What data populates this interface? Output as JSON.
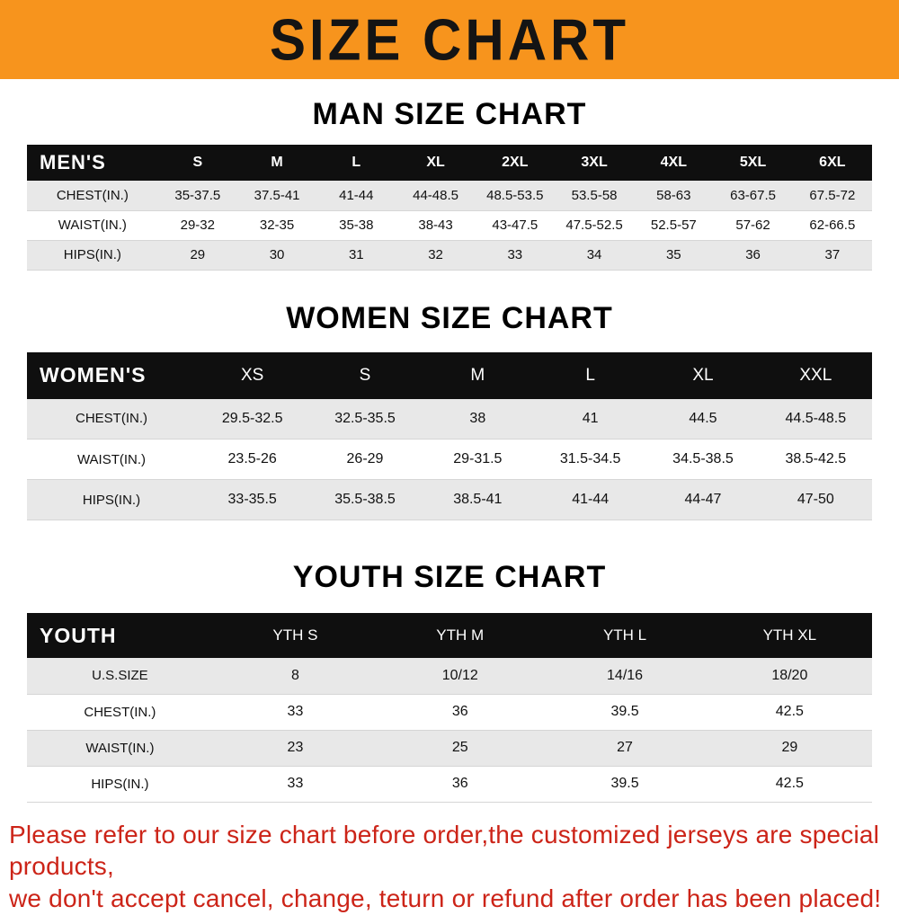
{
  "banner": {
    "title": "SIZE CHART"
  },
  "colors": {
    "banner_bg": "#F7941D",
    "header_bg": "#0F0F0F",
    "row_alt_bg": "#E8E8E8",
    "footer_red": "#CC2418"
  },
  "chart_data": [
    {
      "type": "table",
      "title": "MAN SIZE CHART",
      "corner_label": "MEN'S",
      "columns": [
        "S",
        "M",
        "L",
        "XL",
        "2XL",
        "3XL",
        "4XL",
        "5XL",
        "6XL"
      ],
      "rows": [
        {
          "label": "CHEST(IN.)",
          "values": [
            "35-37.5",
            "37.5-41",
            "41-44",
            "44-48.5",
            "48.5-53.5",
            "53.5-58",
            "58-63",
            "63-67.5",
            "67.5-72"
          ]
        },
        {
          "label": "WAIST(IN.)",
          "values": [
            "29-32",
            "32-35",
            "35-38",
            "38-43",
            "43-47.5",
            "47.5-52.5",
            "52.5-57",
            "57-62",
            "62-66.5"
          ]
        },
        {
          "label": "HIPS(IN.)",
          "values": [
            "29",
            "30",
            "31",
            "32",
            "33",
            "34",
            "35",
            "36",
            "37"
          ]
        }
      ]
    },
    {
      "type": "table",
      "title": "WOMEN SIZE CHART",
      "corner_label": "WOMEN'S",
      "columns": [
        "XS",
        "S",
        "M",
        "L",
        "XL",
        "XXL"
      ],
      "rows": [
        {
          "label": "CHEST(IN.)",
          "values": [
            "29.5-32.5",
            "32.5-35.5",
            "38",
            "41",
            "44.5",
            "44.5-48.5"
          ]
        },
        {
          "label": "WAIST(IN.)",
          "values": [
            "23.5-26",
            "26-29",
            "29-31.5",
            "31.5-34.5",
            "34.5-38.5",
            "38.5-42.5"
          ]
        },
        {
          "label": "HIPS(IN.)",
          "values": [
            "33-35.5",
            "35.5-38.5",
            "38.5-41",
            "41-44",
            "44-47",
            "47-50"
          ]
        }
      ]
    },
    {
      "type": "table",
      "title": "YOUTH SIZE CHART",
      "corner_label": "YOUTH",
      "columns": [
        "YTH S",
        "YTH M",
        "YTH L",
        "YTH XL"
      ],
      "rows": [
        {
          "label": "U.S.SIZE",
          "values": [
            "8",
            "10/12",
            "14/16",
            "18/20"
          ]
        },
        {
          "label": "CHEST(IN.)",
          "values": [
            "33",
            "36",
            "39.5",
            "42.5"
          ]
        },
        {
          "label": "WAIST(IN.)",
          "values": [
            "23",
            "25",
            "27",
            "29"
          ]
        },
        {
          "label": "HIPS(IN.)",
          "values": [
            "33",
            "36",
            "39.5",
            "42.5"
          ]
        }
      ]
    }
  ],
  "footer": {
    "line1": "Please refer to our size chart before order,the customized jerseys are special products,",
    "line2": "we don't accept cancel, change, teturn or refund after order has been placed!"
  }
}
